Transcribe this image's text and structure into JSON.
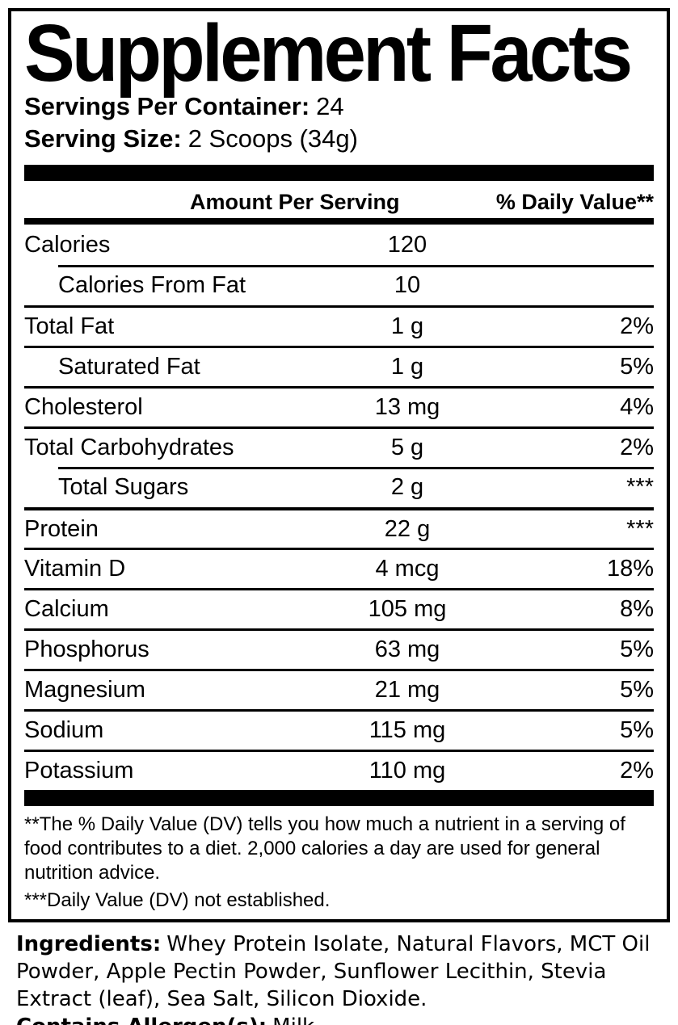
{
  "title": "Supplement Facts",
  "serving_info": {
    "servings_label": "Servings Per Container:",
    "servings_value": "24",
    "size_label": "Serving Size:",
    "size_value": "2 Scoops (34g)"
  },
  "table": {
    "amount_header": "Amount Per Serving",
    "dv_header": "% Daily Value**",
    "rows": [
      {
        "name": "Calories",
        "amount": "120",
        "dv": "",
        "indent": false,
        "sep_indent": false,
        "thick_top": false
      },
      {
        "name": "Calories From Fat",
        "amount": "10",
        "dv": "",
        "indent": true,
        "sep_indent": true,
        "thick_top": false
      },
      {
        "name": "Total Fat",
        "amount": "1 g",
        "dv": "2%",
        "indent": false,
        "sep_indent": false,
        "thick_top": false
      },
      {
        "name": "Saturated Fat",
        "amount": "1 g",
        "dv": "5%",
        "indent": true,
        "sep_indent": false,
        "thick_top": false
      },
      {
        "name": "Cholesterol",
        "amount": "13 mg",
        "dv": "4%",
        "indent": false,
        "sep_indent": false,
        "thick_top": false
      },
      {
        "name": "Total Carbohydrates",
        "amount": "5 g",
        "dv": "2%",
        "indent": false,
        "sep_indent": false,
        "thick_top": false
      },
      {
        "name": "Total Sugars",
        "amount": "2 g",
        "dv": "***",
        "indent": true,
        "sep_indent": true,
        "thick_top": false
      },
      {
        "name": "Protein",
        "amount": "22 g",
        "dv": "***",
        "indent": false,
        "sep_indent": false,
        "thick_top": true
      },
      {
        "name": "Vitamin D",
        "amount": "4 mcg",
        "dv": "18%",
        "indent": false,
        "sep_indent": false,
        "thick_top": false
      },
      {
        "name": "Calcium",
        "amount": "105 mg",
        "dv": "8%",
        "indent": false,
        "sep_indent": false,
        "thick_top": false
      },
      {
        "name": "Phosphorus",
        "amount": "63 mg",
        "dv": "5%",
        "indent": false,
        "sep_indent": false,
        "thick_top": false
      },
      {
        "name": "Magnesium",
        "amount": "21 mg",
        "dv": "5%",
        "indent": false,
        "sep_indent": false,
        "thick_top": false
      },
      {
        "name": "Sodium",
        "amount": "115 mg",
        "dv": "5%",
        "indent": false,
        "sep_indent": false,
        "thick_top": false
      },
      {
        "name": "Potassium",
        "amount": "110 mg",
        "dv": "2%",
        "indent": false,
        "sep_indent": false,
        "thick_top": false
      }
    ]
  },
  "footnotes": [
    "**The % Daily Value (DV) tells you how much a nutrient in a serving of food contributes to a diet. 2,000 calories a day are used for general nutrition advice.",
    "***Daily Value (DV) not established."
  ],
  "ingredients": {
    "label": "Ingredients:",
    "text": "Whey Protein Isolate, Natural Flavors, MCT Oil Powder, Apple Pectin Powder, Sunflower Lecithin, Stevia Extract (leaf), Sea Salt, Silicon Dioxide.",
    "allergen_label": "Contains Allergen(s):",
    "allergen_value": "Milk"
  },
  "colors": {
    "text": "#000000",
    "background": "#ffffff",
    "rule": "#000000"
  }
}
